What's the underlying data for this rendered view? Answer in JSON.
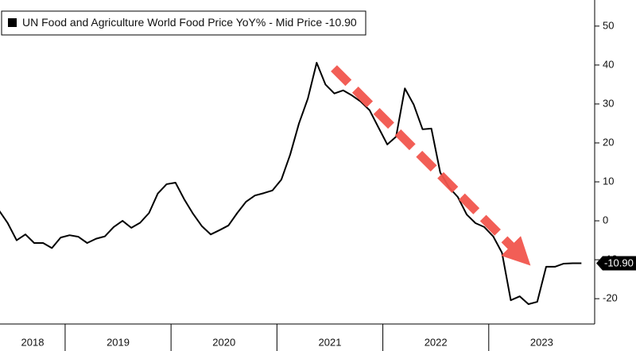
{
  "chart_data": {
    "type": "line",
    "title": "UN Food and Agriculture World Food Price YoY% - Mid Price -10.90",
    "last_value_label": "-10.90",
    "year_labels": [
      "2018",
      "2019",
      "2020",
      "2021",
      "2022",
      "2023"
    ],
    "xlim": [
      2018.385,
      2024.0
    ],
    "xticks": [
      2019,
      2020,
      2021,
      2022,
      2023
    ],
    "ylim": [
      -26.5,
      56.7
    ],
    "yticks": [
      -20,
      -10,
      0,
      10,
      20,
      30,
      40,
      50
    ],
    "grid": false,
    "x": [
      2018.375,
      2018.458,
      2018.542,
      2018.625,
      2018.708,
      2018.792,
      2018.875,
      2018.958,
      2019.042,
      2019.125,
      2019.208,
      2019.292,
      2019.375,
      2019.458,
      2019.542,
      2019.625,
      2019.708,
      2019.792,
      2019.875,
      2019.958,
      2020.042,
      2020.125,
      2020.208,
      2020.292,
      2020.375,
      2020.458,
      2020.542,
      2020.625,
      2020.708,
      2020.792,
      2020.875,
      2020.958,
      2021.042,
      2021.125,
      2021.208,
      2021.292,
      2021.375,
      2021.458,
      2021.542,
      2021.625,
      2021.708,
      2021.792,
      2021.875,
      2021.958,
      2022.042,
      2022.125,
      2022.208,
      2022.292,
      2022.375,
      2022.458,
      2022.542,
      2022.625,
      2022.708,
      2022.792,
      2022.875,
      2022.958,
      2023.042,
      2023.125,
      2023.208,
      2023.292,
      2023.375,
      2023.458,
      2023.542,
      2023.625,
      2023.708,
      2023.792,
      2023.875
    ],
    "series": [
      {
        "name": "UN Food and Agriculture World Food Price YoY%",
        "color": "#000000",
        "values": [
          2.7,
          -0.6,
          -5,
          -3.5,
          -5.7,
          -5.7,
          -7,
          -4.3,
          -3.7,
          -4.1,
          -5.7,
          -4.6,
          -4,
          -1.6,
          0,
          -1.8,
          -0.5,
          2,
          7,
          9.4,
          9.8,
          5.5,
          1.8,
          -1.4,
          -3.5,
          -2.4,
          -1.2,
          2,
          4.9,
          6.5,
          7.1,
          7.8,
          10.6,
          17,
          25,
          31.4,
          40.6,
          35,
          32.7,
          33.5,
          32.2,
          30.6,
          28.4,
          24,
          19.6,
          21.6,
          34,
          29.8,
          23.5,
          23.7,
          12.4,
          8.6,
          6.1,
          1.6,
          -0.6,
          -1.6,
          -4,
          -8.2,
          -20.4,
          -19.4,
          -21.4,
          -20.8,
          -11.8,
          -11.8,
          -11,
          -10.9,
          -10.9
        ]
      }
    ]
  }
}
